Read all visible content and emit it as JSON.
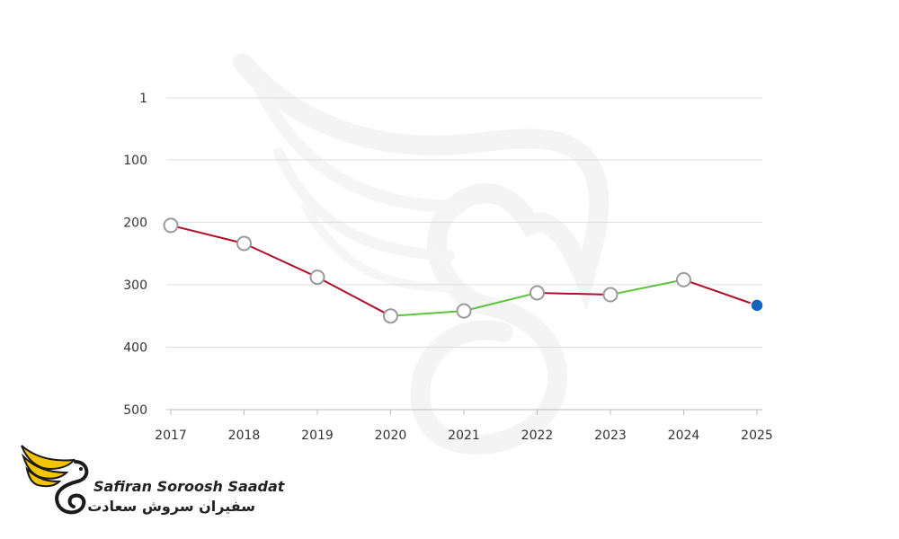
{
  "chart_data": {
    "type": "line",
    "title": "",
    "xlabel": "",
    "ylabel": "",
    "x": [
      "2017",
      "2018",
      "2019",
      "2020",
      "2021",
      "2022",
      "2023",
      "2024",
      "2025"
    ],
    "series": [
      {
        "values": [
          205,
          234,
          288,
          350,
          342,
          313,
          316,
          292,
          333
        ]
      }
    ],
    "y_ticks": [
      1,
      100,
      200,
      300,
      400,
      500
    ],
    "y_tick_labels": [
      "1",
      "100",
      "200",
      "300",
      "400",
      "500"
    ],
    "ylim": [
      1,
      500
    ],
    "y_inverted": true,
    "grid": true,
    "legend": "none",
    "colors": {
      "worsening": "#b0102e",
      "improving": "#5cc43a",
      "marker_fill": "#ffffff",
      "marker_stroke": "#9a9a9a",
      "last_point": "#1565c0",
      "grid": "#dddddd",
      "axis": "#bbbbbb"
    }
  },
  "logo": {
    "text_en": "Safiran Soroosh Saadat",
    "text_fa": "سفیران سروش سعادت",
    "colors": {
      "wing": "#f5c400",
      "outline": "#1a1a1a"
    }
  }
}
